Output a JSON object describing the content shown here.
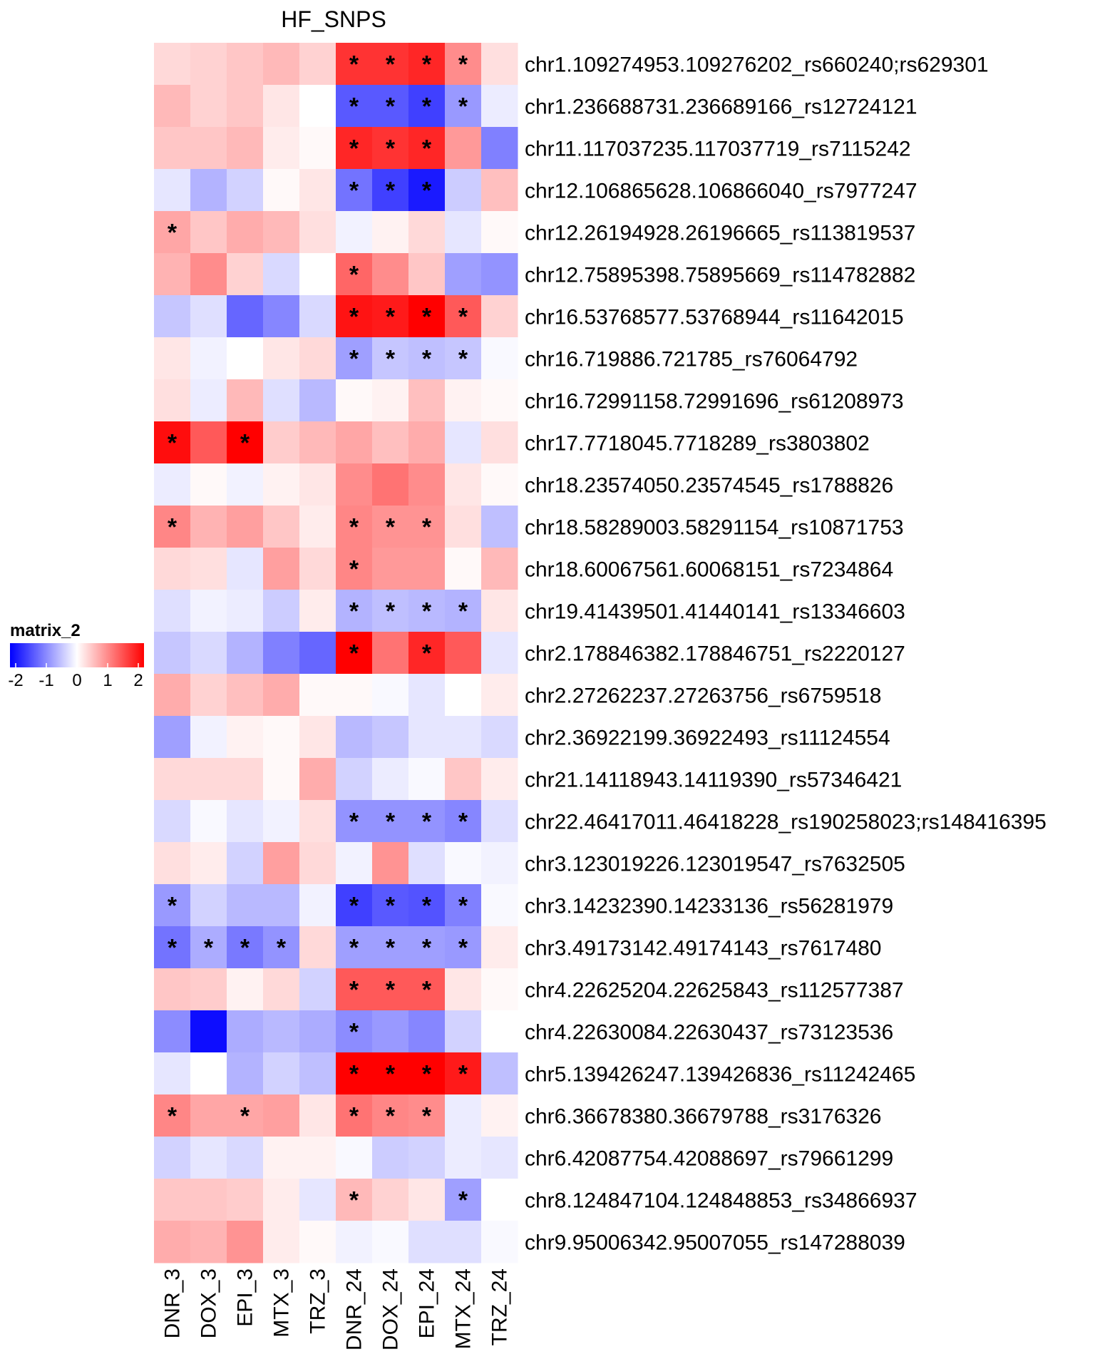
{
  "chart_data": {
    "type": "heatmap",
    "title": "HF_SNPS",
    "columns": [
      "DNR_3",
      "DOX_3",
      "EPI_3",
      "MTX_3",
      "TRZ_3",
      "DNR_24",
      "DOX_24",
      "EPI_24",
      "MTX_24",
      "TRZ_24"
    ],
    "rows": [
      "chr1.109274953.109276202_rs660240;rs629301",
      "chr1.236688731.236689166_rs12724121",
      "chr11.117037235.117037719_rs7115242",
      "chr12.106865628.106866040_rs7977247",
      "chr12.26194928.26196665_rs113819537",
      "chr12.75895398.75895669_rs114782882",
      "chr16.53768577.53768944_rs11642015",
      "chr16.719886.721785_rs76064792",
      "chr16.72991158.72991696_rs61208973",
      "chr17.7718045.7718289_rs3803802",
      "chr18.23574050.23574545_rs1788826",
      "chr18.58289003.58291154_rs10871753",
      "chr18.60067561.60068151_rs7234864",
      "chr19.41439501.41440141_rs13346603",
      "chr2.178846382.178846751_rs2220127",
      "chr2.27262237.27263756_rs6759518",
      "chr2.36922199.36922493_rs11124554",
      "chr21.14118943.14119390_rs57346421",
      "chr22.46417011.46418228_rs190258023;rs148416395",
      "chr3.123019226.123019547_rs7632505",
      "chr3.14232390.14233136_rs56281979",
      "chr3.49173142.49174143_rs7617480",
      "chr4.22625204.22625843_rs112577387",
      "chr4.22630084.22630437_rs73123536",
      "chr5.139426247.139426836_rs11242465",
      "chr6.36678380.36679788_rs3176326",
      "chr6.42087754.42088697_rs79661299",
      "chr8.124847104.124848853_rs34866937",
      "chr9.95006342.95007055_rs147288039"
    ],
    "values": [
      [
        0.3,
        0.35,
        0.45,
        0.55,
        0.35,
        1.6,
        1.6,
        1.7,
        0.9,
        0.25
      ],
      [
        0.55,
        0.35,
        0.45,
        0.2,
        0.0,
        -1.3,
        -1.3,
        -1.5,
        -0.8,
        -0.15
      ],
      [
        0.45,
        0.45,
        0.55,
        0.15,
        0.05,
        1.7,
        1.6,
        1.7,
        0.8,
        -1.0
      ],
      [
        -0.2,
        -0.6,
        -0.35,
        0.05,
        0.2,
        -1.1,
        -1.5,
        -1.8,
        -0.4,
        0.5
      ],
      [
        0.7,
        0.45,
        0.65,
        0.55,
        0.25,
        -0.1,
        0.1,
        0.3,
        -0.2,
        0.05
      ],
      [
        0.6,
        0.9,
        0.35,
        -0.3,
        0.0,
        1.2,
        0.9,
        0.45,
        -0.75,
        -0.85
      ],
      [
        -0.45,
        -0.25,
        -1.2,
        -0.95,
        -0.3,
        1.85,
        1.8,
        2.1,
        1.3,
        0.35
      ],
      [
        0.2,
        -0.1,
        0.0,
        0.2,
        0.3,
        -0.75,
        -0.45,
        -0.5,
        -0.45,
        -0.05
      ],
      [
        0.25,
        -0.15,
        0.55,
        -0.25,
        -0.55,
        0.05,
        0.1,
        0.5,
        0.1,
        0.05
      ],
      [
        1.9,
        1.3,
        2.0,
        0.4,
        0.55,
        0.7,
        0.5,
        0.65,
        -0.2,
        0.25
      ],
      [
        -0.15,
        0.05,
        -0.1,
        0.1,
        0.2,
        0.9,
        1.1,
        0.9,
        0.2,
        0.05
      ],
      [
        0.95,
        0.6,
        0.75,
        0.45,
        0.15,
        0.95,
        0.85,
        0.85,
        0.25,
        -0.5
      ],
      [
        0.3,
        0.25,
        -0.2,
        0.75,
        0.3,
        0.95,
        0.8,
        0.8,
        0.05,
        0.55
      ],
      [
        -0.25,
        -0.1,
        -0.15,
        -0.4,
        0.15,
        -0.6,
        -0.5,
        -0.55,
        -0.6,
        0.2
      ],
      [
        -0.45,
        -0.3,
        -0.6,
        -1.0,
        -1.2,
        2.1,
        1.1,
        1.7,
        1.3,
        -0.2
      ],
      [
        0.65,
        0.35,
        0.5,
        0.65,
        0.05,
        0.05,
        -0.05,
        -0.2,
        0.0,
        0.15
      ],
      [
        -0.75,
        -0.1,
        0.1,
        0.05,
        0.2,
        -0.55,
        -0.45,
        -0.2,
        -0.2,
        -0.3
      ],
      [
        0.3,
        0.3,
        0.3,
        0.05,
        0.65,
        -0.35,
        -0.15,
        -0.05,
        0.45,
        0.15
      ],
      [
        -0.3,
        -0.05,
        -0.2,
        -0.1,
        0.25,
        -0.85,
        -0.85,
        -0.85,
        -0.95,
        -0.25
      ],
      [
        0.25,
        0.15,
        -0.35,
        0.75,
        0.3,
        -0.1,
        0.85,
        -0.25,
        -0.05,
        -0.1
      ],
      [
        -0.8,
        -0.35,
        -0.55,
        -0.55,
        -0.1,
        -1.5,
        -1.3,
        -1.35,
        -1.0,
        -0.05
      ],
      [
        -1.1,
        -0.65,
        -1.05,
        -0.85,
        0.3,
        -0.75,
        -0.75,
        -0.75,
        -0.8,
        0.15
      ],
      [
        0.45,
        0.4,
        0.1,
        0.3,
        -0.35,
        1.3,
        1.3,
        1.3,
        0.2,
        0.05
      ],
      [
        -0.9,
        -1.9,
        -0.65,
        -0.55,
        -0.65,
        -0.9,
        -0.8,
        -0.95,
        -0.35,
        0.0
      ],
      [
        -0.2,
        0.0,
        -0.6,
        -0.35,
        -0.5,
        2.2,
        2.1,
        2.15,
        1.8,
        -0.5
      ],
      [
        0.95,
        0.7,
        0.7,
        0.75,
        0.2,
        1.1,
        0.95,
        0.9,
        -0.15,
        0.1
      ],
      [
        -0.35,
        -0.2,
        -0.3,
        0.1,
        0.1,
        -0.05,
        -0.4,
        -0.35,
        -0.15,
        -0.2
      ],
      [
        0.45,
        0.45,
        0.4,
        0.15,
        -0.2,
        0.55,
        0.35,
        0.2,
        -0.75,
        0.0
      ],
      [
        0.65,
        0.6,
        0.85,
        0.15,
        0.05,
        -0.1,
        -0.05,
        -0.25,
        -0.25,
        -0.05
      ]
    ],
    "significant": [
      [
        5,
        6,
        7,
        8
      ],
      [
        5,
        6,
        7,
        8
      ],
      [
        5,
        6,
        7
      ],
      [
        5,
        6,
        7
      ],
      [
        0
      ],
      [
        5
      ],
      [
        5,
        6,
        7,
        8
      ],
      [
        5,
        6,
        7,
        8
      ],
      [],
      [
        0,
        2
      ],
      [],
      [
        0,
        5,
        6,
        7
      ],
      [
        5
      ],
      [
        5,
        6,
        7,
        8
      ],
      [
        5,
        7
      ],
      [],
      [],
      [],
      [
        5,
        6,
        7,
        8
      ],
      [],
      [
        0,
        5,
        6,
        7,
        8
      ],
      [
        0,
        1,
        2,
        3,
        5,
        6,
        7,
        8
      ],
      [
        5,
        6,
        7
      ],
      [
        5
      ],
      [
        5,
        6,
        7,
        8
      ],
      [
        0,
        2,
        5,
        6,
        7
      ],
      [],
      [
        5,
        8
      ],
      []
    ],
    "significance_marker": "*",
    "color_scale": {
      "min": -2,
      "mid": 0,
      "max": 2,
      "low_color": "#0000ff",
      "mid_color": "#ffffff",
      "high_color": "#ff0000"
    },
    "legend": {
      "title": "matrix_2",
      "ticks": [
        "-2",
        "-1",
        "0",
        "1",
        "2"
      ],
      "placement": "left"
    }
  }
}
